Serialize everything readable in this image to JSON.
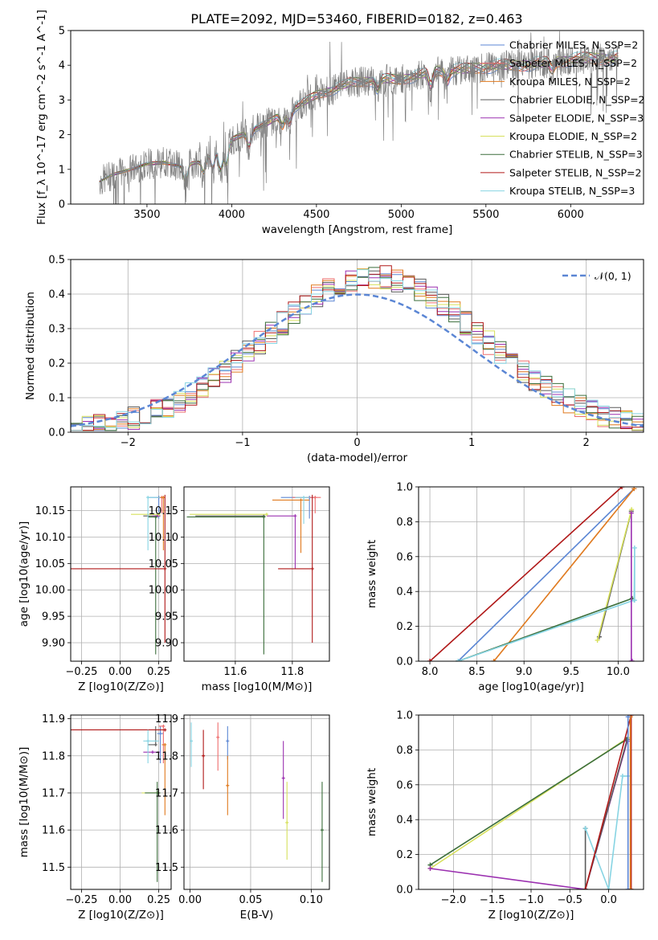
{
  "figure": {
    "title": "PLATE=2092, MJD=53460, FIBERID=0182, z=0.463"
  },
  "colors": {
    "Chabrier MILES": "#5b86d4",
    "Salpeter MILES": "#ee6e6e",
    "Kroupa MILES": "#e07a1f",
    "Chabrier ELODIE": "#5a5a5a",
    "Salpeter ELODIE": "#9b30b0",
    "Kroupa ELODIE": "#d7e05c",
    "Chabrier STELIB": "#3b6e3b",
    "Salpeter STELIB": "#b01818",
    "Kroupa STELIB": "#87d4e3",
    "data": "#808080",
    "gauss": "#5b86d4"
  },
  "chart_data": [
    {
      "id": "spectrum",
      "type": "line",
      "xlabel": "wavelength [Angstrom, rest frame]",
      "ylabel": "Flux [f_λ 10^-17 erg cm^-2 s^-1 A^-1]",
      "xlim": [
        3050,
        6430
      ],
      "ylim": [
        0,
        5
      ],
      "xticks": [
        3500,
        4000,
        4500,
        5000,
        5500,
        6000
      ],
      "yticks": [
        0,
        1,
        2,
        3,
        4,
        5
      ],
      "legend_position": "upper-right",
      "legend": [
        {
          "label": "Chabrier MILES, N_SSP=2",
          "model": "Chabrier MILES"
        },
        {
          "label": "Salpeter MILES, N_SSP=2",
          "model": "Salpeter MILES"
        },
        {
          "label": "Kroupa MILES, N_SSP=2",
          "model": "Kroupa MILES"
        },
        {
          "label": "Chabrier ELODIE, N_SSP=2",
          "model": "Chabrier ELODIE"
        },
        {
          "label": "Salpeter ELODIE, N_SSP=3",
          "model": "Salpeter ELODIE"
        },
        {
          "label": "Kroupa ELODIE, N_SSP=2",
          "model": "Kroupa ELODIE"
        },
        {
          "label": "Chabrier STELIB, N_SSP=3",
          "model": "Chabrier STELIB"
        },
        {
          "label": "Salpeter STELIB, N_SSP=2",
          "model": "Salpeter STELIB"
        },
        {
          "label": "Kroupa STELIB, N_SSP=3",
          "model": "Kroupa STELIB"
        }
      ],
      "continuum": {
        "x": [
          3220,
          3300,
          3400,
          3500,
          3600,
          3700,
          3800,
          3900,
          4000,
          4100,
          4200,
          4300,
          4400,
          4500,
          4600,
          4700,
          4800,
          4900,
          5000,
          5100,
          5200,
          5300,
          5400,
          5500,
          5600,
          5700,
          5800,
          5900,
          6000,
          6100,
          6200
        ],
        "y": [
          0.65,
          0.85,
          1.0,
          1.15,
          1.2,
          1.1,
          1.2,
          1.6,
          1.85,
          2.1,
          2.3,
          2.6,
          2.85,
          3.15,
          3.3,
          3.5,
          3.55,
          3.6,
          3.6,
          3.7,
          3.85,
          3.85,
          3.9,
          3.95,
          4.0,
          4.0,
          4.05,
          4.1,
          4.15,
          4.2,
          4.2
        ]
      }
    },
    {
      "id": "residuals",
      "type": "histogram",
      "xlabel": "(data-model)/error",
      "ylabel": "Normed distribution",
      "xlim": [
        -2.5,
        2.5
      ],
      "ylim": [
        0,
        0.5
      ],
      "xticks": [
        -2,
        -1,
        0,
        1,
        2
      ],
      "yticks": [
        0.0,
        0.1,
        0.2,
        0.3,
        0.4,
        0.5
      ],
      "grid": true,
      "legend": [
        {
          "label": "𝒩(0, 1)"
        }
      ],
      "legend_position": "upper-right",
      "bin_width": 0.1
    },
    {
      "id": "age_vs_Z",
      "type": "errorbar",
      "xlabel": "Z [log10(Z/Z⊙)]",
      "ylabel": "age  [log10(age/yr)]",
      "xlim": [
        -0.32,
        0.33
      ],
      "ylim": [
        9.865,
        10.195
      ],
      "xticks": [
        -0.25,
        0.0,
        0.25
      ],
      "yticks": [
        9.9,
        9.95,
        10.0,
        10.05,
        10.1,
        10.15
      ],
      "grid": true,
      "points": [
        {
          "model": "Chabrier MILES",
          "x": 0.25,
          "y": 10.175,
          "xerr": [
            0.07,
            0.02
          ],
          "yerr": [
            0.04,
            0.0
          ]
        },
        {
          "model": "Salpeter MILES",
          "x": 0.27,
          "y": 10.175,
          "xerr": [
            0.03,
            0.02
          ],
          "yerr": [
            0.03,
            0.0
          ]
        },
        {
          "model": "Kroupa MILES",
          "x": 0.28,
          "y": 10.175,
          "xerr": [
            0.03,
            0.01
          ],
          "yerr": [
            0.1,
            0.0
          ]
        },
        {
          "model": "Chabrier ELODIE",
          "x": 0.24,
          "y": 10.14,
          "xerr": [
            0.09,
            0.02
          ],
          "yerr": [
            0.0,
            0.0
          ]
        },
        {
          "model": "Salpeter ELODIE",
          "x": 0.24,
          "y": 10.14,
          "xerr": [
            0.03,
            0.02
          ],
          "yerr": [
            0.0,
            0.0
          ]
        },
        {
          "model": "Kroupa ELODIE",
          "x": 0.25,
          "y": 10.143,
          "xerr": [
            0.18,
            0.0
          ],
          "yerr": [
            0.0,
            0.0
          ]
        },
        {
          "model": "Chabrier STELIB",
          "x": 0.23,
          "y": 10.138,
          "xerr": [
            0.05,
            0.01
          ],
          "yerr": [
            0.26,
            0.0
          ]
        },
        {
          "model": "Salpeter STELIB",
          "x": 0.29,
          "y": 10.04,
          "xerr": [
            0.61,
            0.0
          ],
          "yerr": [
            0.14,
            0.14
          ]
        },
        {
          "model": "Kroupa STELIB",
          "x": 0.18,
          "y": 10.175,
          "xerr": [
            0.0,
            0.08
          ],
          "yerr": [
            0.1,
            0.0
          ]
        }
      ]
    },
    {
      "id": "age_vs_mass",
      "type": "errorbar",
      "xlabel": "mass [log10(M/M⊙)]",
      "ylabel": "",
      "xlim": [
        11.42,
        11.93
      ],
      "ylim": [
        9.865,
        10.195
      ],
      "xticks": [
        11.6,
        11.8
      ],
      "yticks": [
        9.9,
        9.95,
        10.0,
        10.05,
        10.1,
        10.15
      ],
      "grid": true,
      "points": [
        {
          "model": "Chabrier MILES",
          "x": 11.86,
          "y": 10.175,
          "xerr": [
            0.1,
            0.02
          ],
          "yerr": [
            0.04,
            0.0
          ]
        },
        {
          "model": "Salpeter MILES",
          "x": 11.88,
          "y": 10.175,
          "xerr": [
            0.08,
            0.02
          ],
          "yerr": [
            0.03,
            0.0
          ]
        },
        {
          "model": "Kroupa MILES",
          "x": 11.83,
          "y": 10.17,
          "xerr": [
            0.1,
            0.03
          ],
          "yerr": [
            0.1,
            0.0
          ]
        },
        {
          "model": "Chabrier ELODIE",
          "x": 11.7,
          "y": 10.14,
          "xerr": [
            0.24,
            0.0
          ],
          "yerr": [
            0.0,
            0.0
          ]
        },
        {
          "model": "Salpeter ELODIE",
          "x": 11.81,
          "y": 10.14,
          "xerr": [
            0.1,
            0.0
          ],
          "yerr": [
            0.1,
            0.0
          ]
        },
        {
          "model": "Kroupa ELODIE",
          "x": 11.71,
          "y": 10.143,
          "xerr": [
            0.27,
            0.0
          ],
          "yerr": [
            0.0,
            0.0
          ]
        },
        {
          "model": "Chabrier STELIB",
          "x": 11.7,
          "y": 10.138,
          "xerr": [
            0.27,
            0.0
          ],
          "yerr": [
            0.26,
            0.0
          ]
        },
        {
          "model": "Salpeter STELIB",
          "x": 11.87,
          "y": 10.04,
          "xerr": [
            0.12,
            0.0
          ],
          "yerr": [
            0.14,
            0.14
          ]
        },
        {
          "model": "Kroupa STELIB",
          "x": 11.84,
          "y": 10.175,
          "xerr": [
            0.03,
            0.02
          ],
          "yerr": [
            0.05,
            0.0
          ]
        }
      ]
    },
    {
      "id": "weight_vs_age",
      "type": "line",
      "xlabel": "age  [log10(age/yr)]",
      "ylabel": "mass weight",
      "xlim": [
        7.88,
        10.27
      ],
      "ylim": [
        0,
        1
      ],
      "xticks": [
        8.0,
        8.5,
        9.0,
        9.5,
        10.0
      ],
      "yticks": [
        0.0,
        0.2,
        0.4,
        0.6,
        0.8,
        1.0
      ],
      "grid": true,
      "series": [
        {
          "model": "Salpeter STELIB",
          "x": [
            8.0,
            10.04
          ],
          "y": [
            0.0,
            1.0
          ]
        },
        {
          "model": "Chabrier MILES",
          "x": [
            8.3,
            10.17
          ],
          "y": [
            0.0,
            0.99
          ]
        },
        {
          "model": "Kroupa MILES",
          "x": [
            8.68,
            10.17
          ],
          "y": [
            0.0,
            0.99
          ]
        },
        {
          "model": "Chabrier ELODIE",
          "x": [
            9.8,
            10.14
          ],
          "y": [
            0.14,
            0.86
          ]
        },
        {
          "model": "Kroupa ELODIE",
          "x": [
            9.78,
            10.143
          ],
          "y": [
            0.12,
            0.87
          ]
        },
        {
          "model": "Chabrier STELIB",
          "x": [
            8.3,
            10.15
          ],
          "y": [
            0.0,
            0.36
          ]
        },
        {
          "model": "Kroupa STELIB",
          "x": [
            8.3,
            10.17,
            10.175,
            10.175
          ],
          "y": [
            0.0,
            0.35,
            0.65,
            0.35
          ]
        },
        {
          "model": "Salpeter ELODIE",
          "x": [
            10.14,
            10.14,
            10.15
          ],
          "y": [
            0.85,
            0.0,
            0.0
          ]
        }
      ]
    },
    {
      "id": "mass_vs_Z",
      "type": "errorbar",
      "xlabel": "Z [log10(Z/Z⊙)]",
      "ylabel": "mass [log10(M/M⊙)]",
      "xlim": [
        -0.32,
        0.33
      ],
      "ylim": [
        11.44,
        11.91
      ],
      "xticks": [
        -0.25,
        0.0,
        0.25
      ],
      "yticks": [
        11.5,
        11.6,
        11.7,
        11.8,
        11.9
      ],
      "grid": true,
      "points": [
        {
          "model": "Chabrier MILES",
          "x": 0.26,
          "y": 11.86,
          "xerr": [
            0.02,
            0.02
          ],
          "yerr": [
            0.08,
            0.02
          ]
        },
        {
          "model": "Salpeter MILES",
          "x": 0.28,
          "y": 11.88,
          "xerr": [
            0.03,
            0.0
          ],
          "yerr": [
            0.1,
            0.0
          ]
        },
        {
          "model": "Kroupa MILES",
          "x": 0.29,
          "y": 11.83,
          "xerr": [
            0.02,
            0.0
          ],
          "yerr": [
            0.19,
            0.0
          ]
        },
        {
          "model": "Chabrier ELODIE",
          "x": 0.23,
          "y": 11.83,
          "xerr": [
            0.05,
            0.0
          ],
          "yerr": [
            0.0,
            0.05
          ]
        },
        {
          "model": "Salpeter ELODIE",
          "x": 0.21,
          "y": 11.81,
          "xerr": [
            0.06,
            0.05
          ],
          "yerr": [
            0.0,
            0.0
          ]
        },
        {
          "model": "Kroupa ELODIE",
          "x": 0.24,
          "y": 11.7,
          "xerr": [
            0.1,
            0.02
          ],
          "yerr": [
            0.0,
            0.0
          ]
        },
        {
          "model": "Chabrier STELIB",
          "x": 0.24,
          "y": 11.7,
          "xerr": [
            0.08,
            0.02
          ],
          "yerr": [
            0.24,
            0.03
          ]
        },
        {
          "model": "Salpeter STELIB",
          "x": 0.29,
          "y": 11.87,
          "xerr": [
            0.61,
            0.0
          ],
          "yerr": [
            0.0,
            0.0
          ]
        },
        {
          "model": "Kroupa STELIB",
          "x": 0.18,
          "y": 11.84,
          "xerr": [
            0.03,
            0.07
          ],
          "yerr": [
            0.06,
            0.03
          ]
        }
      ]
    },
    {
      "id": "mass_vs_ebv",
      "type": "errorbar",
      "xlabel": "E(B-V)",
      "ylabel": "",
      "xlim": [
        -0.005,
        0.115
      ],
      "ylim": [
        11.44,
        11.91
      ],
      "xticks": [
        0.0,
        0.05,
        0.1
      ],
      "yticks": [
        11.5,
        11.6,
        11.7,
        11.8,
        11.9
      ],
      "grid": true,
      "points": [
        {
          "model": "Kroupa STELIB",
          "x": 0.001,
          "y": 11.84,
          "xerr": [
            0,
            0
          ],
          "yerr": [
            0.07,
            0.05
          ]
        },
        {
          "model": "Salpeter STELIB",
          "x": 0.011,
          "y": 11.8,
          "xerr": [
            0,
            0
          ],
          "yerr": [
            0.09,
            0.07
          ]
        },
        {
          "model": "Salpeter MILES",
          "x": 0.023,
          "y": 11.85,
          "xerr": [
            0,
            0
          ],
          "yerr": [
            0.09,
            0.04
          ]
        },
        {
          "model": "Chabrier MILES",
          "x": 0.031,
          "y": 11.84,
          "xerr": [
            0,
            0
          ],
          "yerr": [
            0.05,
            0.04
          ]
        },
        {
          "model": "Kroupa MILES",
          "x": 0.031,
          "y": 11.72,
          "xerr": [
            0,
            0
          ],
          "yerr": [
            0.08,
            0.08
          ]
        },
        {
          "model": "Salpeter ELODIE",
          "x": 0.077,
          "y": 11.74,
          "xerr": [
            0,
            0
          ],
          "yerr": [
            0.11,
            0.1
          ]
        },
        {
          "model": "Kroupa ELODIE",
          "x": 0.08,
          "y": 11.62,
          "xerr": [
            0,
            0
          ],
          "yerr": [
            0.1,
            0.11
          ]
        },
        {
          "model": "Chabrier STELIB",
          "x": 0.109,
          "y": 11.6,
          "xerr": [
            0,
            0
          ],
          "yerr": [
            0.14,
            0.13
          ]
        }
      ]
    },
    {
      "id": "weight_vs_Z",
      "type": "line",
      "xlabel": "Z [log10(Z/Z⊙)]",
      "ylabel": "mass weight",
      "xlim": [
        -2.45,
        0.45
      ],
      "ylim": [
        0,
        1
      ],
      "xticks": [
        -2.0,
        -1.5,
        -1.0,
        -0.5,
        0.0
      ],
      "yticks": [
        0.0,
        0.2,
        0.4,
        0.6,
        0.8,
        1.0
      ],
      "grid": true,
      "series": [
        {
          "model": "Kroupa ELODIE",
          "x": [
            -2.3,
            0.25
          ],
          "y": [
            0.12,
            0.87
          ]
        },
        {
          "model": "Chabrier STELIB",
          "x": [
            -2.3,
            0.23
          ],
          "y": [
            0.14,
            0.86
          ]
        },
        {
          "model": "Salpeter ELODIE",
          "x": [
            -2.3,
            -0.3,
            0.24
          ],
          "y": [
            0.12,
            0.0,
            0.85
          ]
        },
        {
          "model": "Chabrier ELODIE",
          "x": [
            -0.3,
            -0.3,
            0.24
          ],
          "y": [
            0.35,
            0.0,
            0.86
          ]
        },
        {
          "model": "Kroupa STELIB",
          "x": [
            -0.3,
            0.0,
            0.18,
            0.25
          ],
          "y": [
            0.35,
            0.0,
            0.65,
            0.65
          ]
        },
        {
          "model": "Salpeter STELIB",
          "x": [
            -0.3,
            0.29,
            0.29
          ],
          "y": [
            0.0,
            1.0,
            0.0
          ]
        },
        {
          "model": "Kroupa MILES",
          "x": [
            0.28,
            0.28
          ],
          "y": [
            0.0,
            0.99
          ]
        },
        {
          "model": "Chabrier MILES",
          "x": [
            0.25,
            0.25
          ],
          "y": [
            0.0,
            0.99
          ]
        }
      ]
    }
  ]
}
